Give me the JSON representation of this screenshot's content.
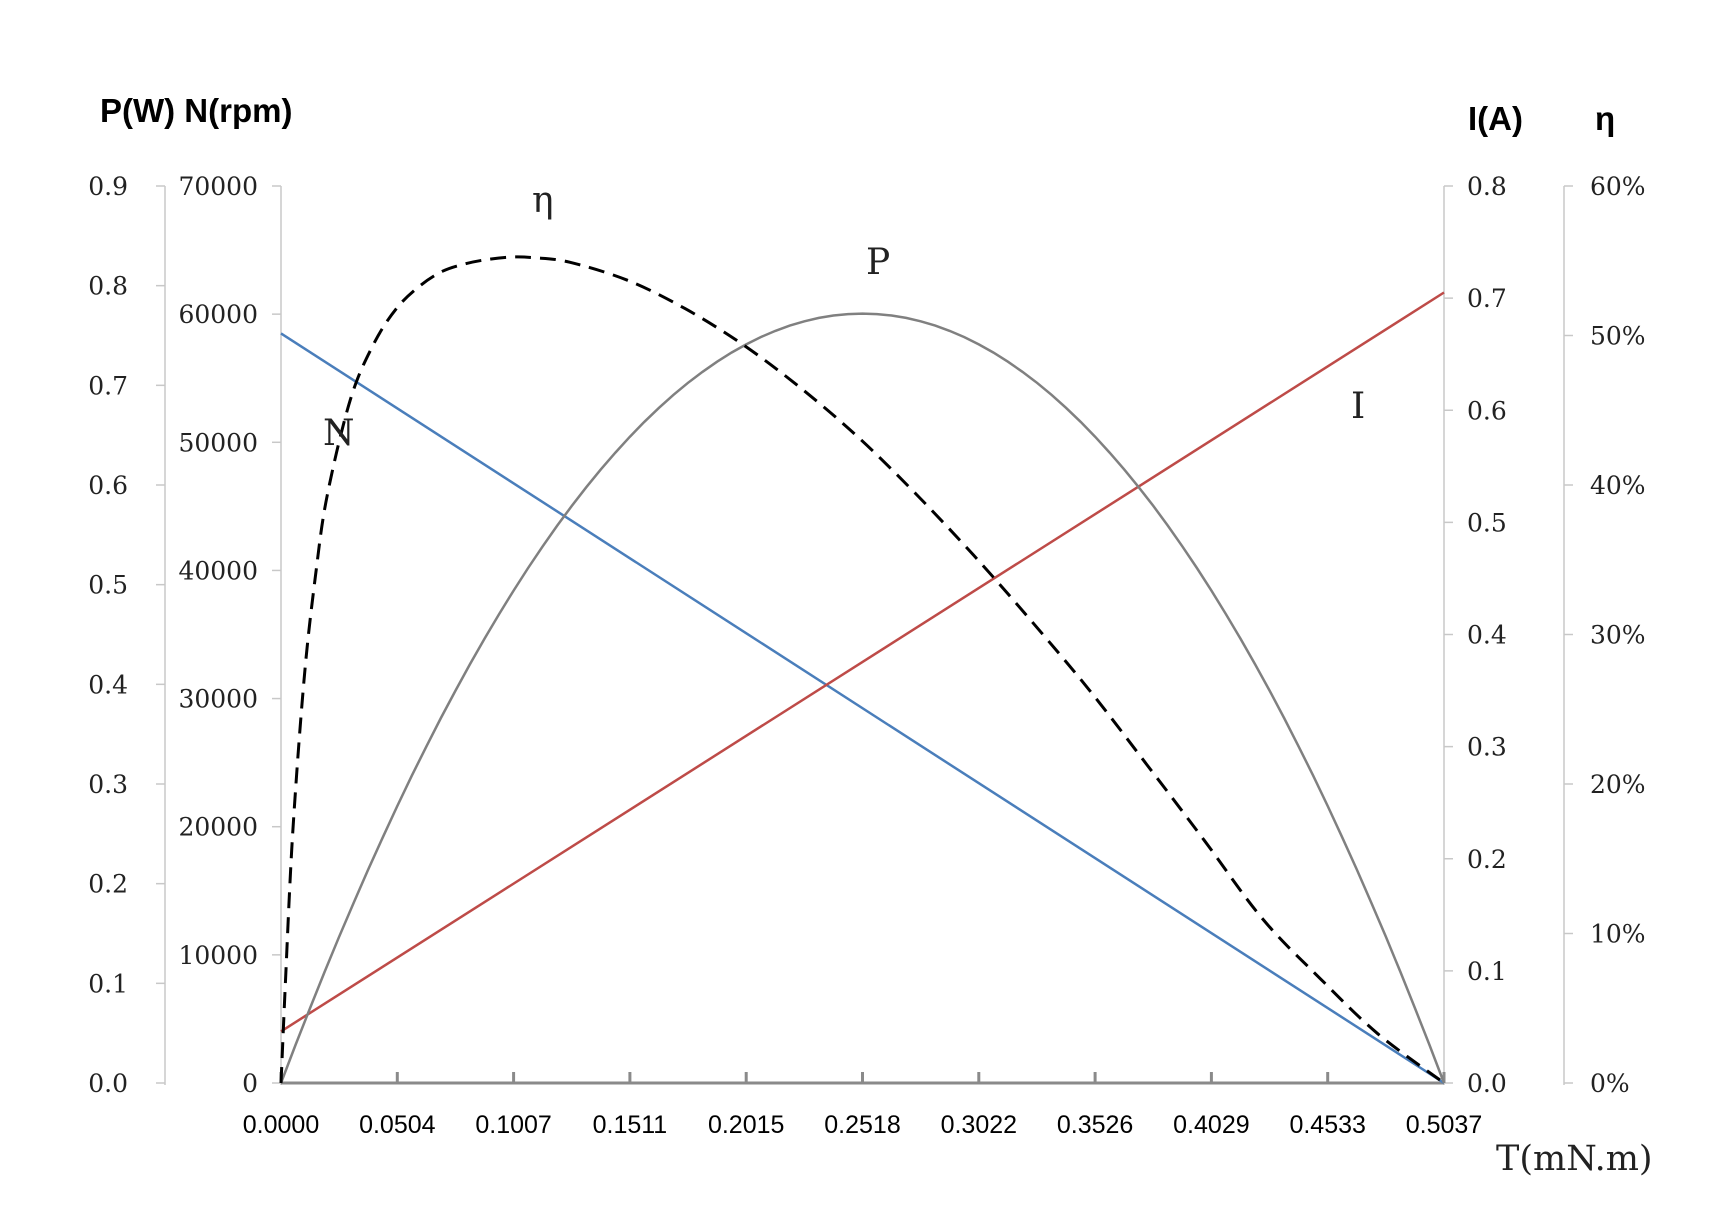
{
  "chart_data": {
    "type": "line",
    "titles": {
      "left": "P(W) N(rpm)",
      "right_current": "I(A)",
      "right_eff": "η"
    },
    "xlabel": "T(mN.m)",
    "x_ticks": [
      "0.0000",
      "0.0504",
      "0.1007",
      "0.1511",
      "0.2015",
      "0.2518",
      "0.3022",
      "0.3526",
      "0.4029",
      "0.4533",
      "0.5037"
    ],
    "xlim": [
      0,
      0.5037
    ],
    "axes": {
      "power": {
        "ticks": [
          "0.0",
          "0.1",
          "0.2",
          "0.3",
          "0.4",
          "0.5",
          "0.6",
          "0.7",
          "0.8",
          "0.9"
        ],
        "lim": [
          0,
          0.9
        ]
      },
      "speed": {
        "ticks": [
          "0",
          "10000",
          "20000",
          "30000",
          "40000",
          "50000",
          "60000",
          "70000"
        ],
        "lim": [
          0,
          70000
        ]
      },
      "current": {
        "ticks": [
          "0.0",
          "0.1",
          "0.2",
          "0.3",
          "0.4",
          "0.5",
          "0.6",
          "0.7",
          "0.8"
        ],
        "lim": [
          0,
          0.8
        ]
      },
      "efficiency": {
        "ticks": [
          "0%",
          "10%",
          "20%",
          "30%",
          "40%",
          "50%",
          "60%"
        ],
        "lim": [
          0,
          0.6
        ]
      }
    },
    "series": [
      {
        "name": "N",
        "axis": "speed",
        "color": "#4a7ebb",
        "x": [
          0,
          0.5037
        ],
        "y": [
          58500,
          0
        ]
      },
      {
        "name": "I",
        "axis": "current",
        "color": "#be4b48",
        "x": [
          0,
          0.5037
        ],
        "y": [
          0.046,
          0.705
        ]
      },
      {
        "name": "P",
        "axis": "power",
        "color": "#808080",
        "peak_x": 0.2518,
        "peak_y": 0.772
      },
      {
        "name": "η",
        "axis": "efficiency",
        "color": "#000000",
        "dashed": true,
        "x": [
          0,
          0.002,
          0.005,
          0.01,
          0.015,
          0.02,
          0.03,
          0.04,
          0.05,
          0.06,
          0.07,
          0.08,
          0.09,
          0.1,
          0.11,
          0.125,
          0.15,
          0.175,
          0.2,
          0.225,
          0.25,
          0.275,
          0.3,
          0.325,
          0.35,
          0.375,
          0.4,
          0.425,
          0.45,
          0.475,
          0.5037
        ],
        "y": [
          0,
          0.07,
          0.165,
          0.27,
          0.34,
          0.393,
          0.457,
          0.494,
          0.518,
          0.533,
          0.543,
          0.548,
          0.551,
          0.5525,
          0.552,
          0.549,
          0.537,
          0.518,
          0.494,
          0.465,
          0.432,
          0.394,
          0.353,
          0.309,
          0.263,
          0.213,
          0.162,
          0.11,
          0.07,
          0.033,
          0
        ]
      }
    ],
    "grid": false
  }
}
